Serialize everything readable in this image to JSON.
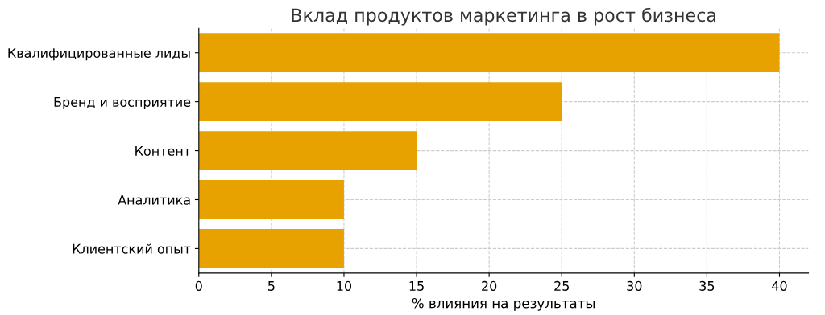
{
  "chart_data": {
    "type": "bar",
    "orientation": "horizontal",
    "title": "Вклад продуктов маркетинга в рост бизнеса",
    "xlabel": "% влияния на результаты",
    "categories": [
      "Квалифицированные лиды",
      "Бренд и восприятие",
      "Контент",
      "Аналитика",
      "Клиентский опыт"
    ],
    "values": [
      40,
      25,
      15,
      10,
      10
    ],
    "color": "#e8a200",
    "xlim": [
      0,
      42
    ],
    "xticks": [
      0,
      5,
      10,
      15,
      20,
      25,
      30,
      35,
      40
    ],
    "grid": true
  }
}
